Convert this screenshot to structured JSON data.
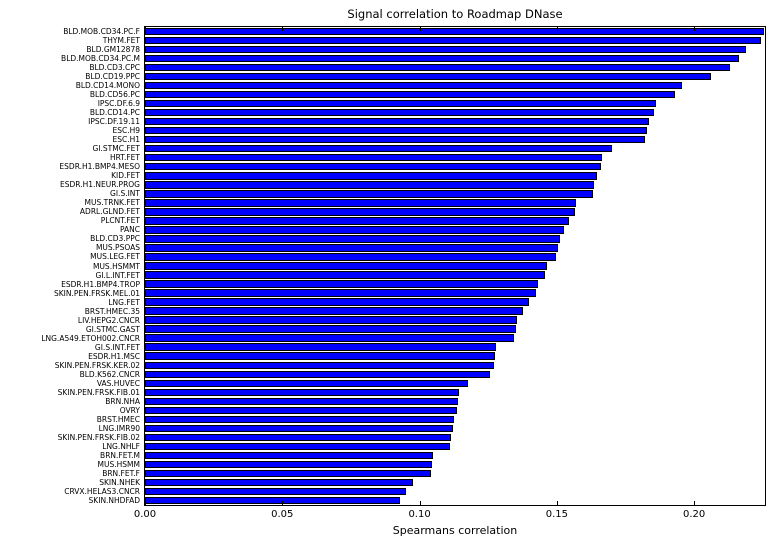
{
  "chart_data": {
    "type": "bar",
    "orientation": "horizontal",
    "title": "Signal correlation to Roadmap DNase",
    "xlabel": "Spearmans correlation",
    "xlim": [
      0,
      0.2258
    ],
    "grid": false,
    "legend": "none",
    "bar_color": "#0000ff",
    "bar_edge_color": "#000000",
    "background_color": "#ffffff",
    "x_ticks": [
      {
        "label": "0.00",
        "value": 0.0
      },
      {
        "label": "0.05",
        "value": 0.05
      },
      {
        "label": "0.10",
        "value": 0.1
      },
      {
        "label": "0.15",
        "value": 0.15
      },
      {
        "label": "0.20",
        "value": 0.2
      }
    ],
    "categories": [
      "BLD.MOB.CD34.PC.F",
      "THYM.FET",
      "BLD.GM12878",
      "BLD.MOB.CD34.PC.M",
      "BLD.CD3.CPC",
      "BLD.CD19.PPC",
      "BLD.CD14.MONO",
      "BLD.CD56.PC",
      "IPSC.DF.6.9",
      "BLD.CD14.PC",
      "IPSC.DF.19.11",
      "ESC.H9",
      "ESC.H1",
      "GI.STMC.FET",
      "HRT.FET",
      "ESDR.H1.BMP4.MESO",
      "KID.FET",
      "ESDR.H1.NEUR.PROG",
      "GI.S.INT",
      "MUS.TRNK.FET",
      "ADRL.GLND.FET",
      "PLCNT.FET",
      "PANC",
      "BLD.CD3.PPC",
      "MUS.PSOAS",
      "MUS.LEG.FET",
      "MUS.HSMMT",
      "GI.L.INT.FET",
      "ESDR.H1.BMP4.TROP",
      "SKIN.PEN.FRSK.MEL.01",
      "LNG.FET",
      "BRST.HMEC.35",
      "LIV.HEPG2.CNCR",
      "GI.STMC.GAST",
      "LNG.A549.ETOH002.CNCR",
      "GI.S.INT.FET",
      "ESDR.H1.MSC",
      "SKIN.PEN.FRSK.KER.02",
      "BLD.K562.CNCR",
      "VAS.HUVEC",
      "SKIN.PEN.FRSK.FIB.01",
      "BRN.NHA",
      "OVRY",
      "BRST.HMEC",
      "LNG.IMR90",
      "SKIN.PEN.FRSK.FIB.02",
      "LNG.NHLF",
      "BRN.FET.M",
      "MUS.HSMM",
      "BRN.FET.F",
      "SKIN.NHEK",
      "CRVX.HELAS3.CNCR",
      "SKIN.NHDFAD"
    ],
    "values": [
      0.2255,
      0.2245,
      0.219,
      0.2165,
      0.213,
      0.206,
      0.1955,
      0.193,
      0.186,
      0.1855,
      0.1835,
      0.183,
      0.182,
      0.17,
      0.1665,
      0.166,
      0.1645,
      0.1635,
      0.163,
      0.157,
      0.1565,
      0.1545,
      0.1525,
      0.151,
      0.1505,
      0.1495,
      0.1465,
      0.1455,
      0.143,
      0.1425,
      0.14,
      0.1375,
      0.1355,
      0.135,
      0.1345,
      0.128,
      0.1275,
      0.127,
      0.1255,
      0.1175,
      0.1145,
      0.114,
      0.1135,
      0.1125,
      0.112,
      0.1115,
      0.111,
      0.105,
      0.1045,
      0.104,
      0.0975,
      0.095,
      0.093
    ]
  }
}
